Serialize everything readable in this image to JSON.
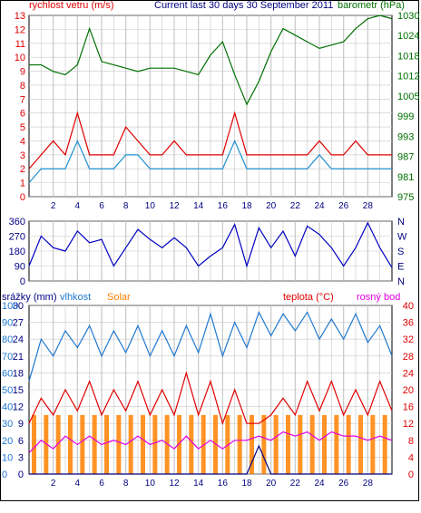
{
  "title": "Current last 30 days 30 September 2011",
  "colors": {
    "wind": "#e00000",
    "gust": "#1f8fd0",
    "baro": "#007000",
    "dir": "#0000c0",
    "humidity": "#1f78d0",
    "solar": "#ff8000",
    "temp": "#e00000",
    "dew": "#e000e0",
    "rain": "#000080",
    "grid": "#c8c8c8"
  },
  "chart_data": [
    {
      "type": "line",
      "name": "wind-pressure",
      "title": "Current last 30 days 30 September 2011",
      "left_label": "rychlost vetru (m/s)",
      "right_label": "barometr (hPa)",
      "ylim_left": [
        0,
        13
      ],
      "left_ticks": [
        "0",
        "1",
        "2",
        "3",
        "4",
        "5",
        "6",
        "7",
        "8",
        "9",
        "10",
        "11",
        "12",
        "13"
      ],
      "ylim_right": [
        975,
        1030
      ],
      "right_ticks": [
        "975",
        "981",
        "987",
        "993",
        "999",
        "1005",
        "1012",
        "1018",
        "1024",
        "1030"
      ],
      "xlim": [
        0,
        30
      ],
      "x_ticks": [
        "2",
        "4",
        "6",
        "8",
        "10",
        "12",
        "14",
        "16",
        "18",
        "20",
        "22",
        "24",
        "26",
        "28"
      ],
      "x": [
        0,
        1,
        2,
        3,
        4,
        5,
        6,
        7,
        8,
        9,
        10,
        11,
        12,
        13,
        14,
        15,
        16,
        17,
        18,
        19,
        20,
        21,
        22,
        23,
        24,
        25,
        26,
        27,
        28,
        29,
        30
      ],
      "series": [
        {
          "key": "wind",
          "values": [
            2,
            3,
            4,
            3,
            6,
            3,
            3,
            3,
            5,
            4,
            3,
            3,
            4,
            3,
            3,
            3,
            3,
            6,
            3,
            3,
            3,
            3,
            3,
            3,
            4,
            3,
            3,
            4,
            3,
            3,
            3
          ]
        },
        {
          "key": "gust",
          "values": [
            1,
            2,
            2,
            2,
            4,
            2,
            2,
            2,
            3,
            3,
            2,
            2,
            2,
            2,
            2,
            2,
            2,
            4,
            2,
            2,
            2,
            2,
            2,
            2,
            3,
            2,
            2,
            2,
            2,
            2,
            2
          ]
        },
        {
          "key": "baro",
          "values": [
            1015,
            1015,
            1013,
            1012,
            1015,
            1026,
            1016,
            1015,
            1014,
            1013,
            1014,
            1014,
            1014,
            1013,
            1012,
            1018,
            1022,
            1012,
            1003,
            1010,
            1019,
            1026,
            1024,
            1022,
            1020,
            1021,
            1022,
            1026,
            1029,
            1030,
            1029
          ]
        }
      ]
    },
    {
      "type": "line",
      "name": "wind-direction",
      "ylim_left": [
        0,
        360
      ],
      "left_ticks": [
        "0",
        "90",
        "180",
        "270",
        "360"
      ],
      "right_ticks": [
        "N",
        "E",
        "S",
        "W",
        "N"
      ],
      "x": [
        0,
        1,
        2,
        3,
        4,
        5,
        6,
        7,
        8,
        9,
        10,
        11,
        12,
        13,
        14,
        15,
        16,
        17,
        18,
        19,
        20,
        21,
        22,
        23,
        24,
        25,
        26,
        27,
        28,
        29,
        30
      ],
      "series": [
        {
          "key": "dir",
          "values": [
            90,
            270,
            200,
            180,
            300,
            230,
            250,
            90,
            200,
            310,
            250,
            200,
            260,
            200,
            90,
            150,
            200,
            340,
            90,
            320,
            200,
            300,
            150,
            330,
            280,
            200,
            90,
            200,
            350,
            200,
            80
          ]
        }
      ]
    },
    {
      "type": "line",
      "name": "weather",
      "labels": [
        "srážky (mm)",
        "vlhkost",
        "Solar",
        "teplota (°C)",
        "rosný bod"
      ],
      "ylim_left": [
        0,
        30
      ],
      "left_ticks_rain": [
        "0",
        "3",
        "6",
        "9",
        "12",
        "15",
        "18",
        "21",
        "24",
        "27",
        "30"
      ],
      "left_ticks_hum": [
        "0",
        "10",
        "20",
        "30",
        "40",
        "50",
        "60",
        "70",
        "80",
        "90",
        "100"
      ],
      "ylim_right": [
        0,
        40
      ],
      "right_ticks": [
        "0",
        "4",
        "8",
        "12",
        "16",
        "20",
        "24",
        "28",
        "32",
        "36",
        "40"
      ],
      "x": [
        0,
        1,
        2,
        3,
        4,
        5,
        6,
        7,
        8,
        9,
        10,
        11,
        12,
        13,
        14,
        15,
        16,
        17,
        18,
        19,
        20,
        21,
        22,
        23,
        24,
        25,
        26,
        27,
        28,
        29,
        30
      ],
      "series": [
        {
          "key": "humidity",
          "values": [
            55,
            80,
            70,
            85,
            75,
            88,
            70,
            85,
            72,
            88,
            70,
            85,
            70,
            88,
            72,
            95,
            70,
            90,
            75,
            96,
            82,
            95,
            85,
            96,
            80,
            92,
            80,
            95,
            78,
            88,
            70
          ]
        },
        {
          "key": "temp",
          "values": [
            12,
            18,
            14,
            20,
            15,
            22,
            14,
            20,
            15,
            22,
            14,
            20,
            14,
            24,
            14,
            22,
            12,
            20,
            12,
            12,
            14,
            18,
            14,
            22,
            15,
            22,
            14,
            20,
            14,
            22,
            15
          ]
        },
        {
          "key": "dew",
          "values": [
            5,
            8,
            6,
            9,
            7,
            9,
            7,
            8,
            7,
            9,
            7,
            8,
            6,
            9,
            6,
            8,
            6,
            8,
            8,
            9,
            8,
            10,
            9,
            10,
            8,
            10,
            9,
            9,
            8,
            9,
            8
          ]
        },
        {
          "key": "rain",
          "values": [
            0,
            0,
            0,
            0,
            0,
            0,
            0,
            0,
            0,
            0,
            0,
            0,
            0,
            0,
            0,
            0,
            0,
            0,
            0,
            5,
            0,
            0,
            0,
            0,
            0,
            0,
            0,
            0,
            0,
            0,
            0
          ]
        }
      ]
    }
  ]
}
